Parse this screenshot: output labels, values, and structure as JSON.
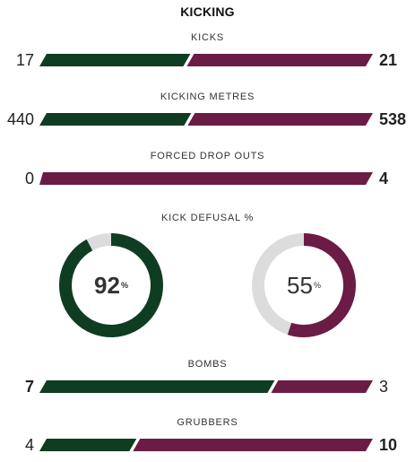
{
  "title": "KICKING",
  "colors": {
    "home": "#0f3d22",
    "away": "#6b1c44",
    "track": "#dcdcdc"
  },
  "stats": [
    {
      "label": "KICKS",
      "home": "17",
      "away": "21",
      "home_value": 17,
      "away_value": 21,
      "bold": "away"
    },
    {
      "label": "KICKING METRES",
      "home": "440",
      "away": "538",
      "home_value": 440,
      "away_value": 538,
      "bold": "away"
    },
    {
      "label": "FORCED DROP OUTS",
      "home": "0",
      "away": "4",
      "home_value": 0,
      "away_value": 4,
      "bold": "away"
    },
    {
      "label": "BOMBS",
      "home": "7",
      "away": "3",
      "home_value": 7,
      "away_value": 3,
      "bold": "home"
    },
    {
      "label": "GRUBBERS",
      "home": "4",
      "away": "10",
      "home_value": 4,
      "away_value": 10,
      "bold": "away"
    }
  ],
  "defusal": {
    "label": "KICK DEFUSAL %",
    "pct_symbol": "%",
    "home": {
      "value": "92",
      "percent": 92
    },
    "away": {
      "value": "55",
      "percent": 55
    }
  }
}
